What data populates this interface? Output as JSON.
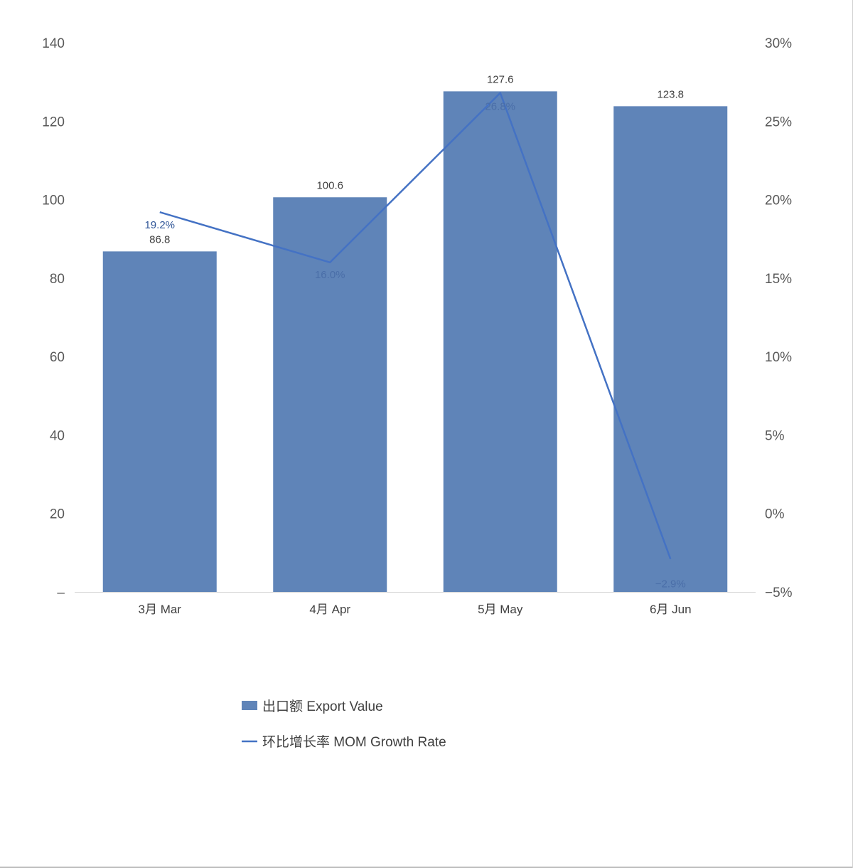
{
  "chart_data": {
    "type": "bar",
    "categories": [
      "3月 Mar",
      "4月 Apr",
      "5月 May",
      "6月 Jun"
    ],
    "series": [
      {
        "name": "出口额 Export Value",
        "type": "bar",
        "axis": "left",
        "color": "#5F84B8",
        "values": [
          86.8,
          100.6,
          127.6,
          123.8
        ],
        "labels": [
          "86.8",
          "100.6",
          "127.6",
          "123.8"
        ]
      },
      {
        "name": "环比增长率 MOM Growth Rate",
        "type": "line",
        "axis": "right",
        "color": "#4472C4",
        "values": [
          19.2,
          16.0,
          26.8,
          -2.9
        ],
        "labels": [
          "19.2%",
          "16.0%",
          "26.8%",
          "−2.9%"
        ]
      }
    ],
    "y_left": {
      "ylim": [
        0,
        140
      ],
      "ticks": [
        0,
        20,
        40,
        60,
        80,
        100,
        120,
        140
      ],
      "tick_labels": [
        "–",
        "20",
        "40",
        "60",
        "80",
        "100",
        "120",
        "140"
      ]
    },
    "y_right": {
      "ylim": [
        -5,
        30
      ],
      "ticks": [
        -5,
        0,
        5,
        10,
        15,
        20,
        25,
        30
      ],
      "tick_labels": [
        "−5%",
        "0%",
        "5%",
        "10%",
        "15%",
        "20%",
        "25%",
        "30%"
      ]
    },
    "line_label_color": "#2F5597",
    "line_label_color_alt": "#4A6EA8",
    "grid": false,
    "legend": "bottom"
  }
}
